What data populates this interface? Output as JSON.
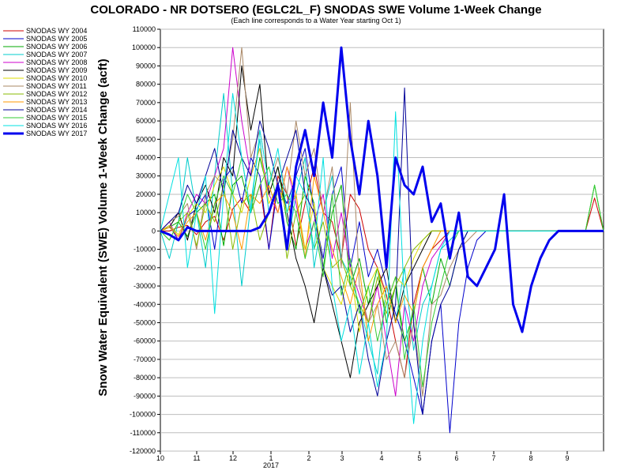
{
  "chart_data": {
    "type": "line",
    "title": "COLORADO - NR DOTSERO (EGLC2L_F) SNODAS SWE Volume 1-Week Change",
    "subtitle": "(Each line corresponds to a Water Year starting Oct 1)",
    "ylabel": "Snow Water Equivalent (SWE) Volume 1-Week Change (acft)",
    "xlabel": "",
    "x_ticks": [
      "10",
      "11",
      "12",
      "1",
      "2",
      "3",
      "4",
      "5",
      "6",
      "7",
      "8",
      "9"
    ],
    "x_year_label": "2017",
    "ylim": [
      -120000,
      110000
    ],
    "y_ticks": [
      "110000",
      "100000",
      "90000",
      "80000",
      "70000",
      "60000",
      "50000",
      "40000",
      "30000",
      "20000",
      "10000",
      "0",
      "-10000",
      "-20000",
      "-30000",
      "-40000",
      "-50000",
      "-60000",
      "-70000",
      "-80000",
      "-90000",
      "-100000",
      "-110000",
      "-120000"
    ],
    "grid": true,
    "legend_position": "left",
    "series": [
      {
        "name": "SNODAS WY 2004",
        "color": "#cc0000",
        "values": [
          0,
          0,
          2000,
          3000,
          -2000,
          5000,
          8000,
          -5000,
          12000,
          18000,
          10000,
          25000,
          -10000,
          30000,
          20000,
          -8000,
          15000,
          35000,
          10000,
          5000,
          -15000,
          20000,
          12000,
          -10000,
          -20000,
          -35000,
          -60000,
          -80000,
          -40000,
          -20000,
          -10000,
          -5000,
          0,
          0,
          0,
          0,
          0,
          0,
          0,
          0,
          0,
          0,
          0,
          0,
          0,
          0,
          0,
          0,
          18000,
          0
        ]
      },
      {
        "name": "SNODAS WY 2005",
        "color": "#0000cc",
        "values": [
          0,
          3000,
          -5000,
          8000,
          12000,
          20000,
          -10000,
          28000,
          35000,
          15000,
          40000,
          30000,
          -10000,
          25000,
          15000,
          30000,
          45000,
          10000,
          -15000,
          20000,
          35000,
          -20000,
          5000,
          -25000,
          -10000,
          -30000,
          -45000,
          -60000,
          -80000,
          -100000,
          -60000,
          -40000,
          -110000,
          -50000,
          -20000,
          -5000,
          0,
          0,
          0,
          0,
          0,
          0,
          0,
          0,
          0,
          0,
          0,
          0,
          0,
          0
        ]
      },
      {
        "name": "SNODAS WY 2006",
        "color": "#00aa00",
        "values": [
          0,
          2000,
          5000,
          -3000,
          10000,
          15000,
          20000,
          -8000,
          25000,
          30000,
          10000,
          40000,
          20000,
          35000,
          5000,
          -10000,
          30000,
          15000,
          -20000,
          10000,
          25000,
          -30000,
          -15000,
          -40000,
          -20000,
          -50000,
          -30000,
          -60000,
          -45000,
          -20000,
          -40000,
          -15000,
          -30000,
          -10000,
          0,
          0,
          0,
          0,
          0,
          0,
          0,
          0,
          0,
          0,
          0,
          0,
          0,
          0,
          25000,
          0
        ]
      },
      {
        "name": "SNODAS WY 2007",
        "color": "#00cccc",
        "values": [
          0,
          -15000,
          5000,
          40000,
          10000,
          -20000,
          30000,
          75000,
          20000,
          -30000,
          15000,
          50000,
          10000,
          25000,
          -10000,
          20000,
          40000,
          -20000,
          10000,
          30000,
          -15000,
          -25000,
          -40000,
          -60000,
          -78000,
          -30000,
          -50000,
          -20000,
          -65000,
          -40000,
          -30000,
          -10000,
          -5000,
          0,
          0,
          0,
          0,
          0,
          0,
          0,
          0,
          0,
          0,
          0,
          0,
          0,
          0,
          0,
          0,
          0
        ]
      },
      {
        "name": "SNODAS WY 2008",
        "color": "#cc00cc",
        "values": [
          0,
          5000,
          -5000,
          10000,
          20000,
          15000,
          30000,
          45000,
          100000,
          60000,
          30000,
          45000,
          20000,
          10000,
          35000,
          15000,
          -10000,
          5000,
          20000,
          -15000,
          10000,
          -20000,
          -35000,
          -50000,
          -30000,
          -60000,
          -90000,
          -40000,
          -60000,
          -30000,
          -15000,
          -8000,
          0,
          0,
          0,
          0,
          0,
          0,
          0,
          0,
          0,
          0,
          0,
          0,
          0,
          0,
          0,
          0,
          0,
          0
        ]
      },
      {
        "name": "SNODAS WY 2009",
        "color": "#000000",
        "values": [
          0,
          2000,
          10000,
          -5000,
          15000,
          25000,
          10000,
          40000,
          30000,
          90000,
          55000,
          80000,
          20000,
          35000,
          10000,
          -15000,
          -30000,
          -50000,
          -20000,
          -40000,
          -60000,
          -80000,
          -50000,
          -40000,
          -30000,
          -20000,
          -50000,
          -30000,
          -20000,
          -10000,
          0,
          0,
          0,
          0,
          0,
          0,
          0,
          0,
          0,
          0,
          0,
          0,
          0,
          0,
          0,
          0,
          0,
          0,
          0,
          0
        ]
      },
      {
        "name": "SNODAS WY 2010",
        "color": "#dddd00",
        "values": [
          0,
          3000,
          -2000,
          8000,
          15000,
          10000,
          25000,
          35000,
          20000,
          10000,
          30000,
          45000,
          15000,
          25000,
          10000,
          20000,
          -10000,
          15000,
          -20000,
          -30000,
          -40000,
          -20000,
          -55000,
          -30000,
          -20000,
          -40000,
          -25000,
          -30000,
          -15000,
          -5000,
          0,
          0,
          0,
          0,
          0,
          0,
          0,
          0,
          0,
          0,
          0,
          0,
          0,
          0,
          0,
          0,
          0,
          0,
          0,
          0
        ]
      },
      {
        "name": "SNODAS WY 2011",
        "color": "#aa8866",
        "values": [
          0,
          5000,
          8000,
          15000,
          -10000,
          20000,
          30000,
          25000,
          50000,
          100000,
          40000,
          55000,
          25000,
          40000,
          20000,
          60000,
          30000,
          45000,
          10000,
          35000,
          -20000,
          70000,
          -30000,
          -50000,
          -40000,
          -70000,
          -60000,
          -80000,
          -50000,
          -90000,
          -40000,
          -35000,
          -20000,
          -10000,
          -5000,
          0,
          0,
          0,
          0,
          0,
          0,
          0,
          0,
          0,
          0,
          0,
          0,
          0,
          0,
          0
        ]
      },
      {
        "name": "SNODAS WY 2012",
        "color": "#88bb00",
        "values": [
          0,
          -5000,
          5000,
          10000,
          -8000,
          15000,
          5000,
          25000,
          -10000,
          15000,
          20000,
          -5000,
          10000,
          25000,
          -15000,
          10000,
          20000,
          -10000,
          5000,
          -20000,
          -15000,
          -30000,
          -40000,
          -50000,
          -25000,
          -45000,
          -30000,
          -20000,
          -10000,
          -5000,
          0,
          0,
          0,
          0,
          0,
          0,
          0,
          0,
          0,
          0,
          0,
          0,
          0,
          0,
          0,
          0,
          0,
          0,
          0,
          0
        ]
      },
      {
        "name": "SNODAS WY 2013",
        "color": "#ff9900",
        "values": [
          0,
          2000,
          -3000,
          5000,
          10000,
          -5000,
          15000,
          20000,
          10000,
          -10000,
          20000,
          15000,
          25000,
          10000,
          35000,
          20000,
          -15000,
          30000,
          10000,
          -10000,
          -25000,
          -40000,
          -20000,
          -60000,
          -40000,
          -30000,
          -50000,
          -35000,
          -45000,
          -20000,
          -10000,
          0,
          0,
          0,
          0,
          0,
          0,
          0,
          0,
          0,
          0,
          0,
          0,
          0,
          0,
          0,
          0,
          0,
          0,
          0
        ]
      },
      {
        "name": "SNODAS WY 2014",
        "color": "#000099",
        "values": [
          0,
          5000,
          10000,
          25000,
          15000,
          30000,
          45000,
          20000,
          55000,
          40000,
          30000,
          60000,
          45000,
          25000,
          40000,
          55000,
          20000,
          10000,
          -20000,
          -35000,
          -30000,
          -55000,
          -40000,
          -70000,
          -90000,
          -60000,
          -40000,
          78000,
          -50000,
          -100000,
          -60000,
          -40000,
          -30000,
          -10000,
          0,
          0,
          0,
          0,
          0,
          0,
          0,
          0,
          0,
          0,
          0,
          0,
          0,
          0,
          0,
          0
        ]
      },
      {
        "name": "SNODAS WY 2015",
        "color": "#33cc33",
        "values": [
          0,
          -5000,
          5000,
          20000,
          10000,
          -10000,
          15000,
          30000,
          20000,
          40000,
          10000,
          25000,
          35000,
          15000,
          20000,
          10000,
          -15000,
          5000,
          -25000,
          20000,
          -35000,
          -15000,
          -45000,
          -30000,
          -60000,
          -40000,
          -25000,
          -70000,
          -40000,
          -85000,
          -50000,
          -30000,
          -10000,
          0,
          0,
          0,
          0,
          0,
          0,
          0,
          0,
          0,
          0,
          0,
          0,
          0,
          0,
          0,
          25000,
          0
        ]
      },
      {
        "name": "SNODAS WY 2016",
        "color": "#00e0e0",
        "values": [
          0,
          20000,
          40000,
          -20000,
          10000,
          30000,
          -45000,
          20000,
          75000,
          40000,
          10000,
          55000,
          25000,
          45000,
          10000,
          30000,
          20000,
          -10000,
          40000,
          -30000,
          -60000,
          -40000,
          -78000,
          -50000,
          -85000,
          -60000,
          65000,
          -40000,
          -105000,
          -60000,
          -30000,
          -10000,
          0,
          0,
          0,
          0,
          0,
          0,
          0,
          0,
          0,
          0,
          0,
          0,
          0,
          0,
          0,
          0,
          0,
          0
        ]
      },
      {
        "name": "SNODAS WY 2017",
        "color": "#0000ee",
        "values": [
          0,
          -2000,
          -5000,
          2000,
          0,
          0,
          0,
          0,
          0,
          0,
          0,
          2000,
          10000,
          25000,
          -10000,
          35000,
          55000,
          30000,
          70000,
          40000,
          100000,
          50000,
          20000,
          60000,
          30000,
          -20000,
          40000,
          25000,
          20000,
          35000,
          5000,
          15000,
          -15000,
          10000,
          -25000,
          -30000,
          -20000,
          -10000,
          20000,
          -40000,
          -55000,
          -30000,
          -15000,
          -5000,
          0,
          0,
          0,
          0,
          0,
          0
        ]
      }
    ]
  }
}
